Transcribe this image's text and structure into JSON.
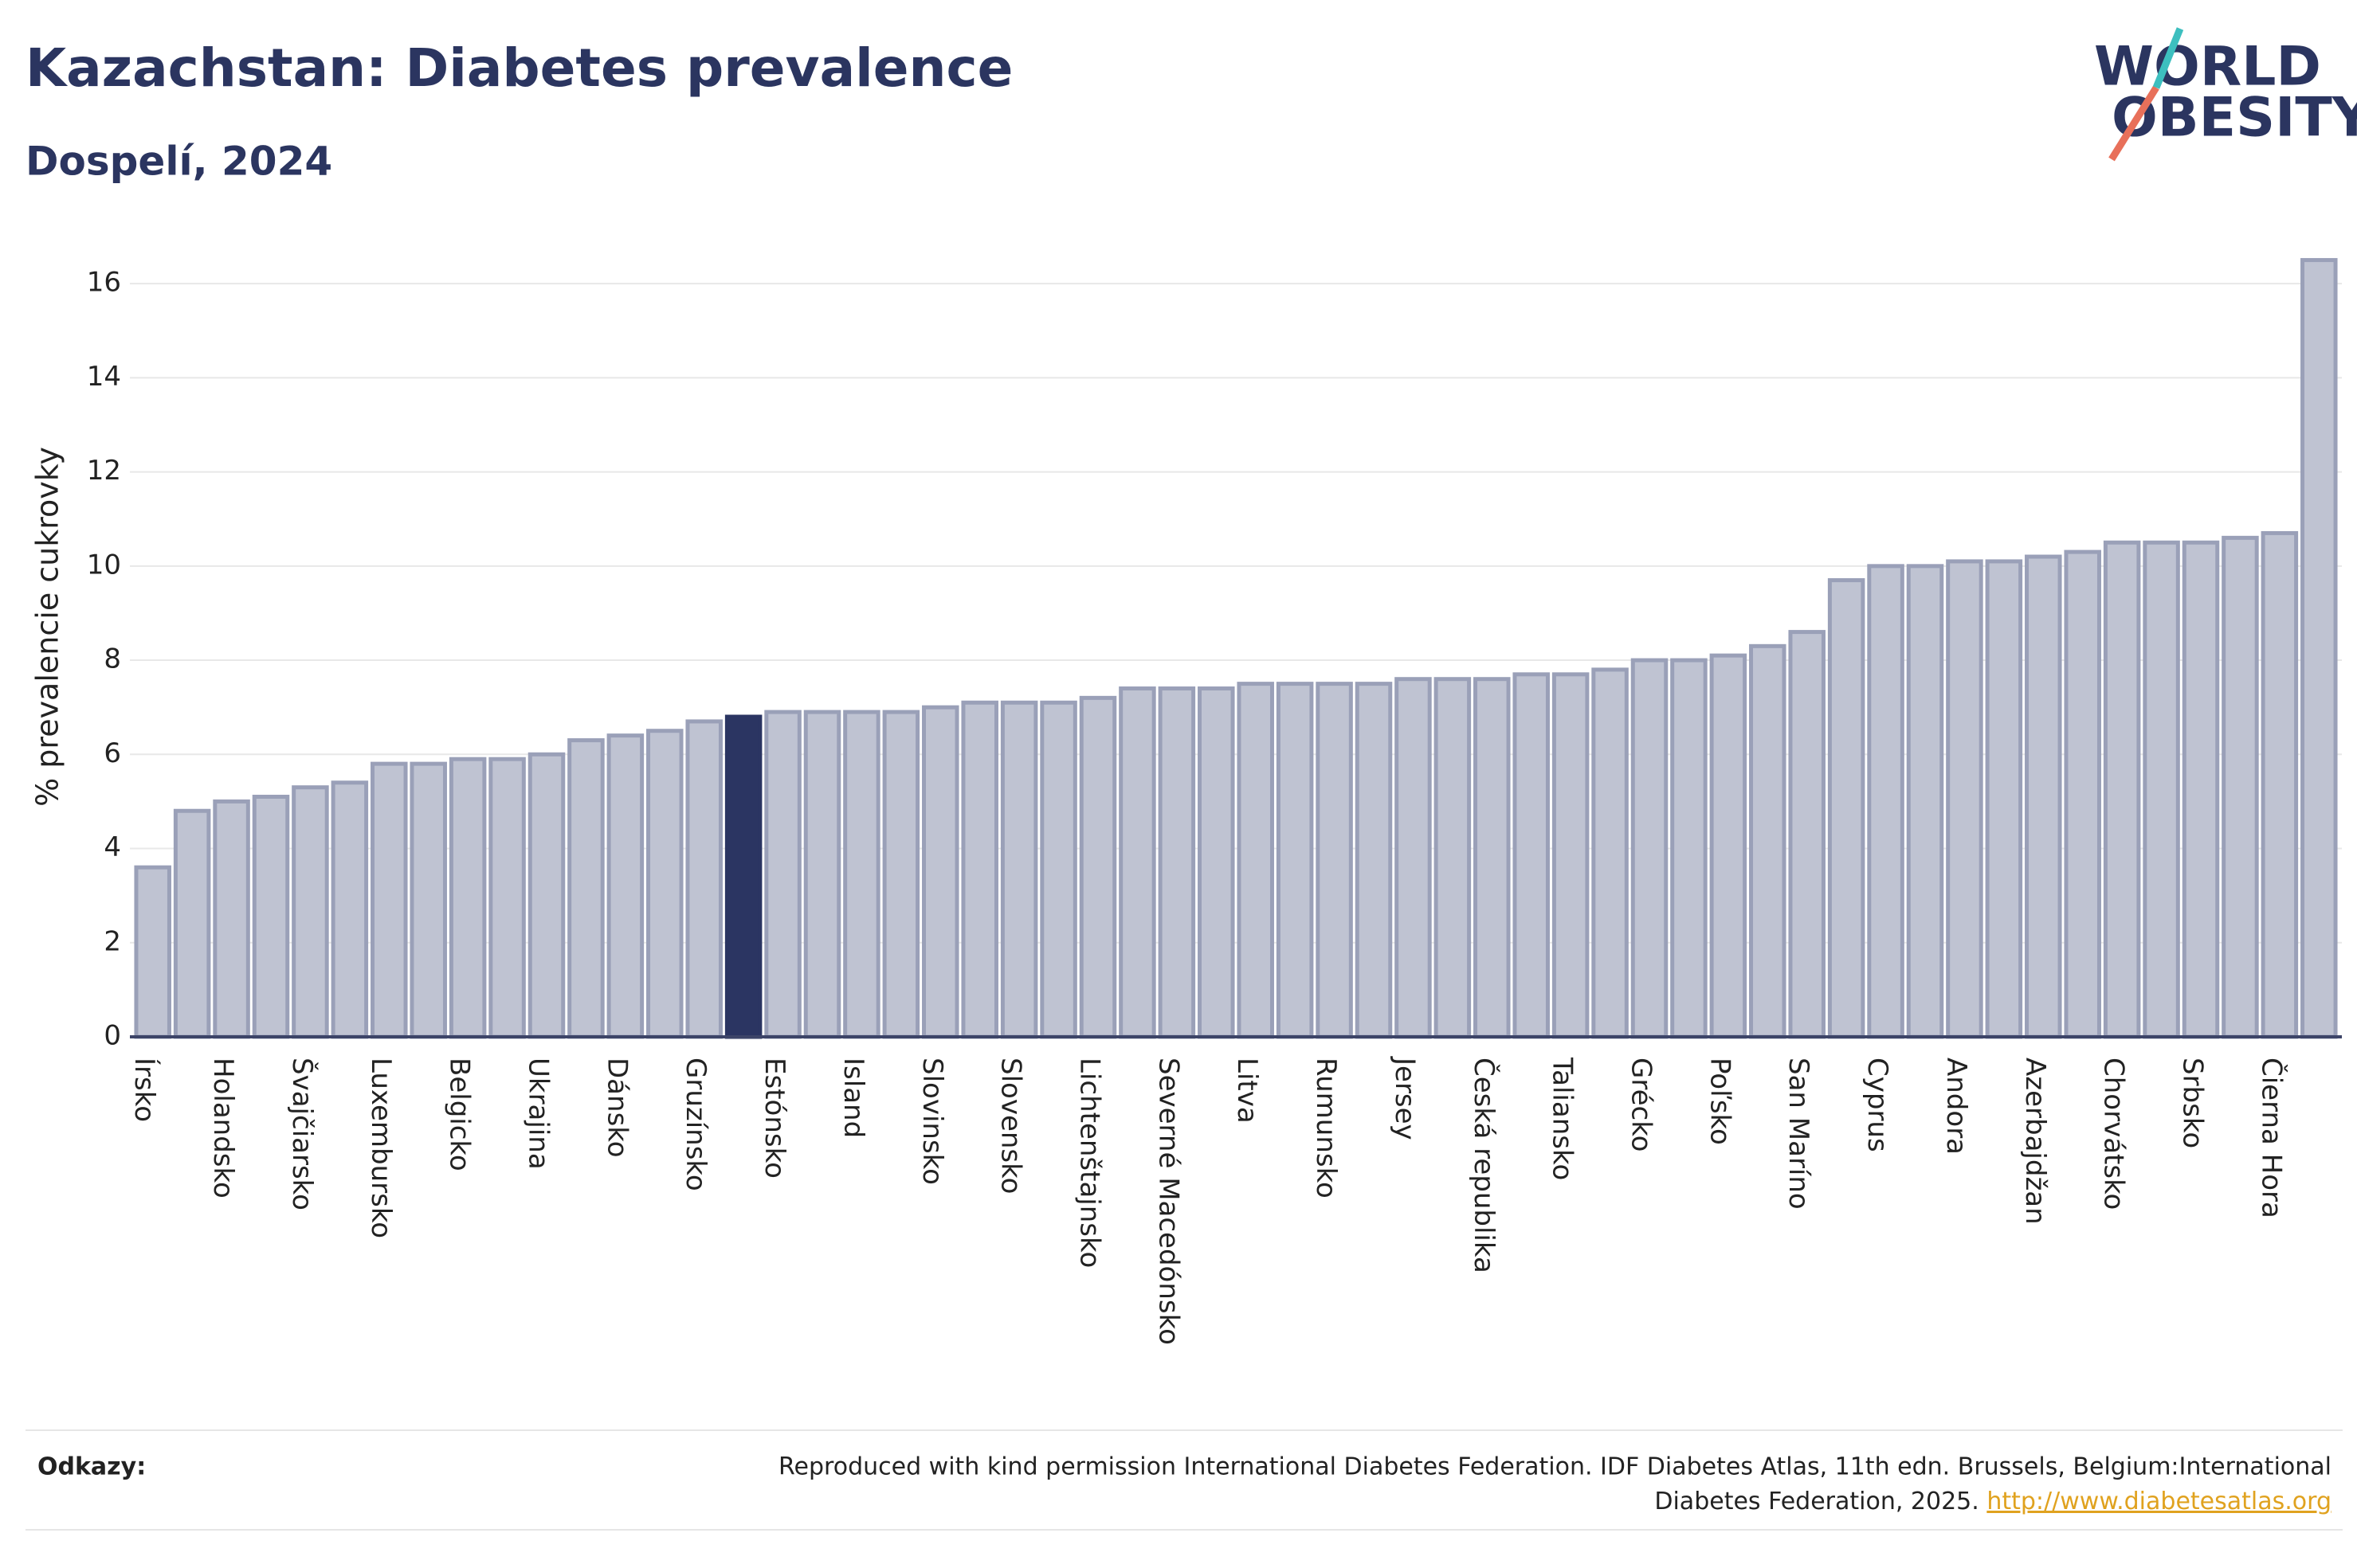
{
  "chart_data": {
    "type": "bar",
    "title": "Kazachstan: Diabetes prevalence",
    "subtitle": "Dospelí, 2024",
    "y_label": "% prevalencie cukrovky",
    "logo": [
      "WORLD",
      "OBESITY"
    ],
    "categories": [
      "Írsko",
      null,
      "Holandsko",
      null,
      "Švajčiarsko",
      null,
      "Luxembursko",
      null,
      "Belgicko",
      null,
      "Ukrajina",
      null,
      "Dánsko",
      null,
      "Gruzínsko",
      null,
      "Estónsko",
      null,
      "Island",
      null,
      "Slovinsko",
      null,
      "Slovensko",
      null,
      "Lichtenštajnsko",
      null,
      "Severné Macedónsko",
      null,
      "Litva",
      null,
      "Rumunsko",
      null,
      "Jersey",
      null,
      "Česká republika",
      null,
      "Taliansko",
      null,
      "Grécko",
      null,
      "Poľsko",
      null,
      "San Maríno",
      null,
      "Cyprus",
      null,
      "Andora",
      null,
      "Azerbajdžan",
      null,
      "Chorvátsko",
      null,
      "Srbsko",
      null,
      "Čierna Hora",
      null
    ],
    "values": [
      3.6,
      4.8,
      5.0,
      5.1,
      5.3,
      5.4,
      5.8,
      5.8,
      5.9,
      5.9,
      6.0,
      6.3,
      6.4,
      6.5,
      6.7,
      6.8,
      6.9,
      6.9,
      6.9,
      6.9,
      7.0,
      7.1,
      7.1,
      7.1,
      7.2,
      7.4,
      7.4,
      7.4,
      7.5,
      7.5,
      7.5,
      7.5,
      7.6,
      7.6,
      7.6,
      7.7,
      7.7,
      7.8,
      8.0,
      8.0,
      8.1,
      8.3,
      8.6,
      9.7,
      10.0,
      10.0,
      10.1,
      10.1,
      10.2,
      10.3,
      10.5,
      10.5,
      10.5,
      10.6,
      10.7,
      16.5
    ],
    "colors": [
      "#bfc3d2",
      "#bfc3d2",
      "#bfc3d2",
      "#bfc3d2",
      "#bfc3d2",
      "#bfc3d2",
      "#bfc3d2",
      "#bfc3d2",
      "#bfc3d2",
      "#bfc3d2",
      "#bfc3d2",
      "#bfc3d2",
      "#bfc3d2",
      "#bfc3d2",
      "#bfc3d2",
      "#2b3562",
      "#bfc3d2",
      "#bfc3d2",
      "#bfc3d2",
      "#bfc3d2",
      "#bfc3d2",
      "#bfc3d2",
      "#bfc3d2",
      "#bfc3d2",
      "#bfc3d2",
      "#bfc3d2",
      "#bfc3d2",
      "#bfc3d2",
      "#bfc3d2",
      "#bfc3d2",
      "#bfc3d2",
      "#bfc3d2",
      "#bfc3d2",
      "#bfc3d2",
      "#bfc3d2",
      "#bfc3d2",
      "#bfc3d2",
      "#bfc3d2",
      "#bfc3d2",
      "#bfc3d2",
      "#bfc3d2",
      "#bfc3d2",
      "#bfc3d2",
      "#bfc3d2",
      "#bfc3d2",
      "#bfc3d2",
      "#bfc3d2",
      "#bfc3d2",
      "#bfc3d2",
      "#bfc3d2",
      "#bfc3d2",
      "#bfc3d2",
      "#bfc3d2",
      "#bfc3d2",
      "#bfc3d2",
      "#bfc3d2"
    ],
    "ylim": [
      0,
      17
    ],
    "yticks": [
      0,
      2,
      4,
      6,
      8,
      10,
      12,
      14,
      16
    ],
    "grid": true,
    "source_label": "Odkazy:",
    "source_lines": [
      "Reproduced with kind permission International Diabetes Federation. IDF Diabetes Atlas, 11th edn. Brussels, Belgium:International",
      "Diabetes Federation, 2025."
    ],
    "source_link": "http://www.diabetesatlas.org"
  }
}
